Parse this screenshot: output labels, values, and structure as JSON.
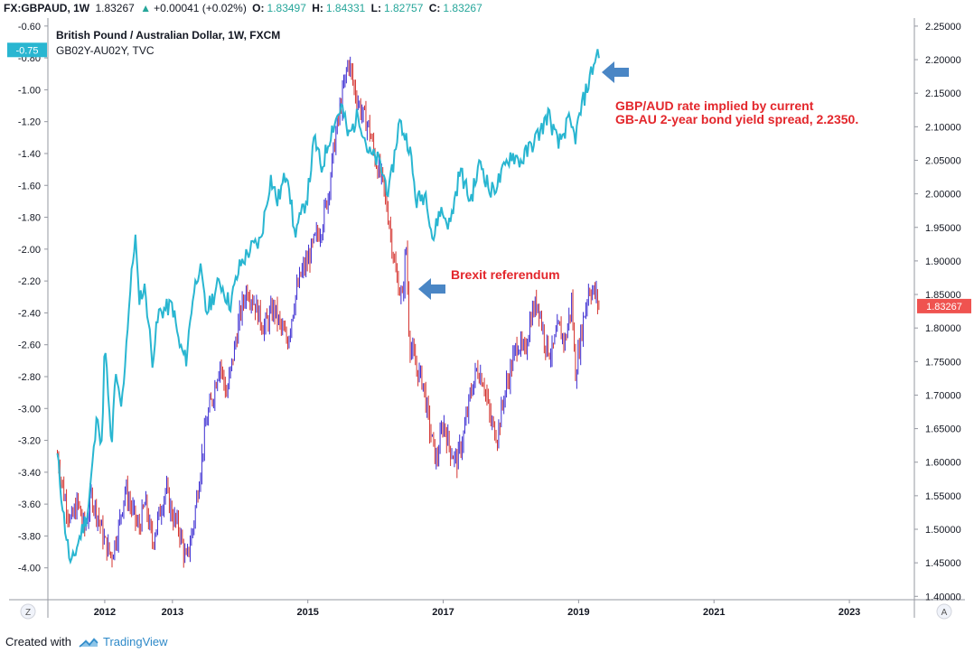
{
  "header": {
    "symbol": "FX:GBPAUD, 1W",
    "last": "1.83267",
    "change": "+0.00041 (+0.02%)",
    "open_label": "O:",
    "open": "1.83497",
    "high_label": "H:",
    "high": "1.84331",
    "low_label": "L:",
    "low": "1.82757",
    "close_label": "C:",
    "close": "1.83267"
  },
  "legend": {
    "primary": "British Pound / Australian Dollar, 1W, FXCM",
    "secondary": "GB02Y-AU02Y, TVC"
  },
  "annotations": {
    "bond": "GBP/AUD rate implied by current\nGB-AU 2-year bond yield spread, 2.2350.",
    "brexit": "Brexit referendum"
  },
  "axis_buttons": {
    "left": "Z",
    "right": "A"
  },
  "footer": {
    "prefix": "Created with",
    "brand": "TradingView"
  },
  "colors": {
    "spread_line": "#29b6d1",
    "candle_up": "#3a2bd1",
    "candle_down": "#d4332f",
    "annotation": "#e3262b",
    "arrow": "#4a86c5",
    "last_price_tag": "#ef5350",
    "spread_tag": "#29b6d1"
  },
  "chart_data": {
    "type": "line",
    "x_tick_labels": [
      "2012",
      "2013",
      "2015",
      "2017",
      "2019",
      "2021",
      "2023"
    ],
    "y_left_ticks": [
      "-0.60",
      "-0.80",
      "-1.00",
      "-1.20",
      "-1.40",
      "-1.60",
      "-1.80",
      "-2.00",
      "-2.20",
      "-2.40",
      "-2.60",
      "-2.80",
      "-3.00",
      "-3.20",
      "-3.40",
      "-3.60",
      "-3.80",
      "-4.00"
    ],
    "y_right_ticks": [
      "2.25000",
      "2.20000",
      "2.15000",
      "2.10000",
      "2.05000",
      "2.00000",
      "1.95000",
      "1.90000",
      "1.85000",
      "1.80000",
      "1.75000",
      "1.70000",
      "1.65000",
      "1.60000",
      "1.55000",
      "1.50000",
      "1.45000",
      "1.40000"
    ],
    "y_left_range": [
      -4.2,
      -0.55
    ],
    "y_right_range": [
      1.395,
      2.262
    ],
    "last_price_tag": "1.83267",
    "spread_tag": "-0.75",
    "series": [
      {
        "name": "GB02Y-AU02Y, TVC",
        "axis": "left",
        "style": "line",
        "points": [
          [
            2011.3,
            -3.3
          ],
          [
            2011.4,
            -3.7
          ],
          [
            2011.5,
            -4.0
          ],
          [
            2011.6,
            -3.85
          ],
          [
            2011.75,
            -3.65
          ],
          [
            2011.9,
            -3.0
          ],
          [
            2011.95,
            -3.3
          ],
          [
            2012.0,
            -2.6
          ],
          [
            2012.05,
            -2.9
          ],
          [
            2012.15,
            -2.8
          ],
          [
            2012.1,
            -3.3
          ],
          [
            2012.25,
            -3.0
          ],
          [
            2012.35,
            -2.4
          ],
          [
            2012.45,
            -1.9
          ],
          [
            2012.5,
            -2.3
          ],
          [
            2012.6,
            -2.25
          ],
          [
            2012.7,
            -2.7
          ],
          [
            2012.8,
            -2.4
          ],
          [
            2013.0,
            -2.35
          ],
          [
            2013.1,
            -2.6
          ],
          [
            2013.2,
            -2.7
          ],
          [
            2013.3,
            -2.3
          ],
          [
            2013.4,
            -2.1
          ],
          [
            2013.5,
            -2.4
          ],
          [
            2013.7,
            -2.2
          ],
          [
            2013.85,
            -2.35
          ],
          [
            2014.0,
            -2.1
          ],
          [
            2014.15,
            -2.0
          ],
          [
            2014.3,
            -1.95
          ],
          [
            2014.45,
            -1.55
          ],
          [
            2014.55,
            -1.7
          ],
          [
            2014.7,
            -1.5
          ],
          [
            2014.8,
            -1.9
          ],
          [
            2014.9,
            -1.8
          ],
          [
            2015.0,
            -1.65
          ],
          [
            2015.1,
            -1.3
          ],
          [
            2015.2,
            -1.5
          ],
          [
            2015.35,
            -1.25
          ],
          [
            2015.5,
            -1.1
          ],
          [
            2015.6,
            -1.3
          ],
          [
            2015.75,
            -1.15
          ],
          [
            2015.9,
            -1.4
          ],
          [
            2016.05,
            -1.45
          ],
          [
            2016.2,
            -1.65
          ],
          [
            2016.35,
            -1.2
          ],
          [
            2016.5,
            -1.35
          ],
          [
            2016.6,
            -1.7
          ],
          [
            2016.75,
            -1.65
          ],
          [
            2016.85,
            -1.95
          ],
          [
            2016.95,
            -1.75
          ],
          [
            2017.1,
            -1.85
          ],
          [
            2017.25,
            -1.5
          ],
          [
            2017.4,
            -1.7
          ],
          [
            2017.55,
            -1.45
          ],
          [
            2017.7,
            -1.65
          ],
          [
            2017.85,
            -1.55
          ],
          [
            2018.0,
            -1.4
          ],
          [
            2018.15,
            -1.45
          ],
          [
            2018.3,
            -1.35
          ],
          [
            2018.45,
            -1.25
          ],
          [
            2018.55,
            -1.15
          ],
          [
            2018.7,
            -1.35
          ],
          [
            2018.85,
            -1.2
          ],
          [
            2018.95,
            -1.3
          ],
          [
            2019.05,
            -1.1
          ],
          [
            2019.15,
            -0.95
          ],
          [
            2019.25,
            -0.8
          ],
          [
            2019.3,
            -0.75
          ]
        ]
      },
      {
        "name": "British Pound / Australian Dollar, 1W, FXCM",
        "axis": "right",
        "style": "candles",
        "points": [
          [
            2011.3,
            1.61
          ],
          [
            2011.4,
            1.55
          ],
          [
            2011.5,
            1.51
          ],
          [
            2011.6,
            1.54
          ],
          [
            2011.7,
            1.5
          ],
          [
            2011.8,
            1.55
          ],
          [
            2011.9,
            1.52
          ],
          [
            2012.0,
            1.48
          ],
          [
            2012.1,
            1.46
          ],
          [
            2012.2,
            1.5
          ],
          [
            2012.3,
            1.56
          ],
          [
            2012.4,
            1.53
          ],
          [
            2012.5,
            1.5
          ],
          [
            2012.6,
            1.54
          ],
          [
            2012.7,
            1.48
          ],
          [
            2012.8,
            1.52
          ],
          [
            2012.9,
            1.56
          ],
          [
            2013.0,
            1.52
          ],
          [
            2013.1,
            1.5
          ],
          [
            2013.2,
            1.45
          ],
          [
            2013.3,
            1.5
          ],
          [
            2013.4,
            1.58
          ],
          [
            2013.5,
            1.66
          ],
          [
            2013.6,
            1.7
          ],
          [
            2013.7,
            1.75
          ],
          [
            2013.8,
            1.7
          ],
          [
            2014.0,
            1.82
          ],
          [
            2014.1,
            1.86
          ],
          [
            2014.2,
            1.84
          ],
          [
            2014.35,
            1.8
          ],
          [
            2014.5,
            1.83
          ],
          [
            2014.6,
            1.8
          ],
          [
            2014.7,
            1.78
          ],
          [
            2014.8,
            1.84
          ],
          [
            2014.9,
            1.88
          ],
          [
            2015.0,
            1.9
          ],
          [
            2015.1,
            1.93
          ],
          [
            2015.2,
            1.95
          ],
          [
            2015.3,
            2.0
          ],
          [
            2015.4,
            2.08
          ],
          [
            2015.5,
            2.14
          ],
          [
            2015.6,
            2.2
          ],
          [
            2015.7,
            2.15
          ],
          [
            2015.8,
            2.12
          ],
          [
            2015.9,
            2.1
          ],
          [
            2016.0,
            2.05
          ],
          [
            2016.1,
            2.02
          ],
          [
            2016.2,
            1.96
          ],
          [
            2016.3,
            1.88
          ],
          [
            2016.4,
            1.84
          ],
          [
            2016.45,
            1.93
          ],
          [
            2016.5,
            1.78
          ],
          [
            2016.6,
            1.74
          ],
          [
            2016.7,
            1.72
          ],
          [
            2016.8,
            1.65
          ],
          [
            2016.9,
            1.6
          ],
          [
            2017.0,
            1.66
          ],
          [
            2017.1,
            1.62
          ],
          [
            2017.2,
            1.6
          ],
          [
            2017.3,
            1.64
          ],
          [
            2017.4,
            1.7
          ],
          [
            2017.5,
            1.74
          ],
          [
            2017.6,
            1.72
          ],
          [
            2017.7,
            1.66
          ],
          [
            2017.8,
            1.64
          ],
          [
            2017.9,
            1.7
          ],
          [
            2018.0,
            1.74
          ],
          [
            2018.1,
            1.78
          ],
          [
            2018.2,
            1.76
          ],
          [
            2018.3,
            1.82
          ],
          [
            2018.4,
            1.84
          ],
          [
            2018.5,
            1.78
          ],
          [
            2018.6,
            1.76
          ],
          [
            2018.7,
            1.8
          ],
          [
            2018.8,
            1.78
          ],
          [
            2018.9,
            1.84
          ],
          [
            2018.95,
            1.73
          ],
          [
            2019.05,
            1.8
          ],
          [
            2019.15,
            1.86
          ],
          [
            2019.25,
            1.85
          ],
          [
            2019.3,
            1.83267
          ]
        ]
      }
    ]
  }
}
